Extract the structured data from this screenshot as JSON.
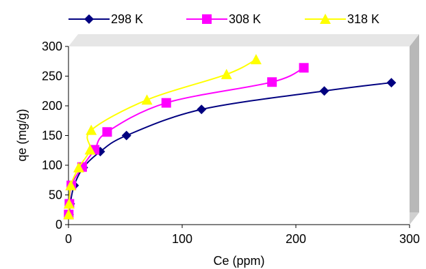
{
  "chart_data": {
    "type": "line",
    "xlabel": "Ce (ppm)",
    "ylabel": "qe (mg/g)",
    "xlim": [
      0,
      300
    ],
    "ylim": [
      0,
      300
    ],
    "x_ticks": [
      "0",
      "100",
      "200",
      "300"
    ],
    "y_ticks": [
      "0",
      "50",
      "100",
      "150",
      "200",
      "250",
      "300"
    ],
    "grid": false,
    "legend_position": "top",
    "series": [
      {
        "name": "298 K",
        "color": "#000080",
        "marker": "diamond",
        "x": [
          0.5,
          1.5,
          5,
          13,
          28,
          51,
          117,
          225,
          284
        ],
        "y": [
          17,
          35,
          66,
          96,
          123,
          150,
          194,
          225,
          239
        ]
      },
      {
        "name": "308 K",
        "color": "#ff00ff",
        "marker": "square",
        "x": [
          0.2,
          0.8,
          2.5,
          12,
          23,
          34,
          86,
          179,
          207
        ],
        "y": [
          17,
          35,
          66,
          97,
          126,
          156,
          205,
          240,
          264
        ]
      },
      {
        "name": "318 K",
        "color": "#ffff00",
        "marker": "triangle",
        "x": [
          0.1,
          0.5,
          2,
          9,
          19,
          20,
          69,
          139,
          165
        ],
        "y": [
          17,
          35,
          66,
          96,
          126,
          159,
          210,
          253,
          278
        ]
      }
    ]
  }
}
